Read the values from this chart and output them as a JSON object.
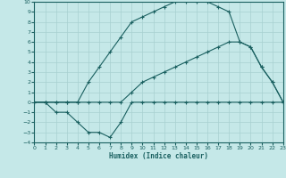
{
  "background_color": "#c5e8e8",
  "grid_color": "#a8d0d0",
  "line_color": "#1a6060",
  "xlabel": "Humidex (Indice chaleur)",
  "ylim": [
    -4,
    10
  ],
  "xlim": [
    0,
    23
  ],
  "line1_x": [
    0,
    1,
    2,
    3,
    4,
    5,
    6,
    7,
    8,
    9,
    10,
    11,
    12,
    13,
    14,
    15,
    16,
    17,
    18,
    19,
    20,
    21,
    22,
    23
  ],
  "line1_y": [
    0,
    0,
    -1,
    -1,
    -2,
    -3,
    -3,
    -3.5,
    -2,
    0,
    0,
    0,
    0,
    0,
    0,
    0,
    0,
    0,
    0,
    0,
    0,
    0,
    0,
    0
  ],
  "line2_x": [
    0,
    1,
    2,
    3,
    4,
    5,
    6,
    7,
    8,
    9,
    10,
    11,
    12,
    13,
    14,
    15,
    16,
    17,
    18,
    19,
    20,
    21,
    22,
    23
  ],
  "line2_y": [
    0,
    0,
    0,
    0,
    0,
    0,
    0,
    0,
    0,
    1,
    2,
    2.5,
    3,
    3.5,
    4,
    4.5,
    5,
    5.5,
    6,
    6,
    5.5,
    3.5,
    2,
    0
  ],
  "line3_x": [
    0,
    1,
    2,
    3,
    4,
    5,
    6,
    7,
    8,
    9,
    10,
    11,
    12,
    13,
    14,
    15,
    16,
    17,
    18,
    19,
    20,
    21,
    22,
    23
  ],
  "line3_y": [
    0,
    0,
    0,
    0,
    0,
    2,
    3.5,
    5,
    6.5,
    8,
    8.5,
    9,
    9.5,
    10,
    10,
    10,
    10,
    9.5,
    9,
    6,
    5.5,
    3.5,
    2,
    0
  ],
  "yticks": [
    -4,
    -3,
    -2,
    -1,
    0,
    1,
    2,
    3,
    4,
    5,
    6,
    7,
    8,
    9,
    10
  ],
  "xticks": [
    0,
    1,
    2,
    3,
    4,
    5,
    6,
    7,
    8,
    9,
    10,
    11,
    12,
    13,
    14,
    15,
    16,
    17,
    18,
    19,
    20,
    21,
    22,
    23
  ]
}
